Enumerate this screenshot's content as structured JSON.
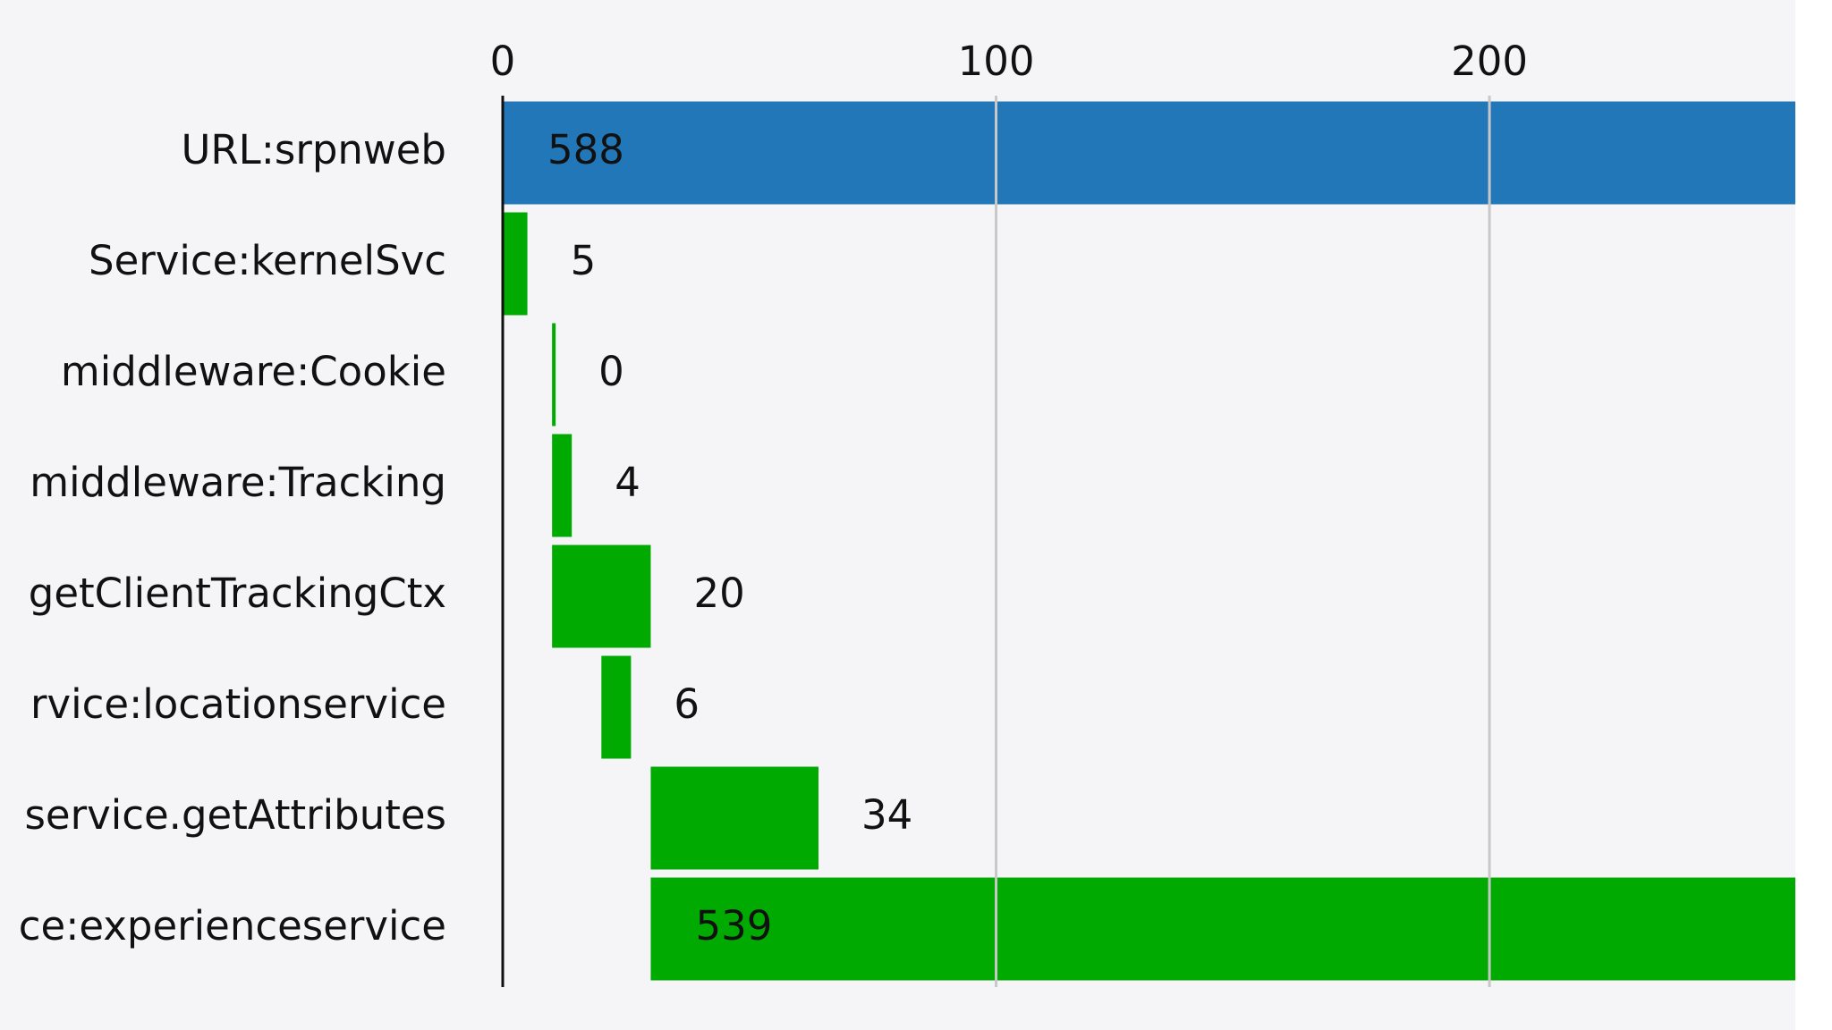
{
  "chart_data": {
    "type": "waterfall",
    "categories": [
      "URL:srpnweb",
      "Service:kernelSvc",
      "middleware:Cookie",
      "middleware:Tracking",
      "getClientTrackingCtx",
      "rvice:locationservice",
      "service.getAttributes",
      "ce:experienceservice"
    ],
    "starts": [
      0,
      0,
      10,
      10,
      10,
      20,
      30,
      30
    ],
    "values": [
      588,
      5,
      0,
      4,
      20,
      6,
      34,
      539
    ],
    "colors": [
      "#2277b8",
      "#00aa00",
      "#00aa00",
      "#00aa00",
      "#00aa00",
      "#00aa00",
      "#00aa00",
      "#00aa00"
    ],
    "xlim": [
      0,
      262
    ],
    "xticks": [
      0,
      100,
      200
    ],
    "grid": true
  }
}
